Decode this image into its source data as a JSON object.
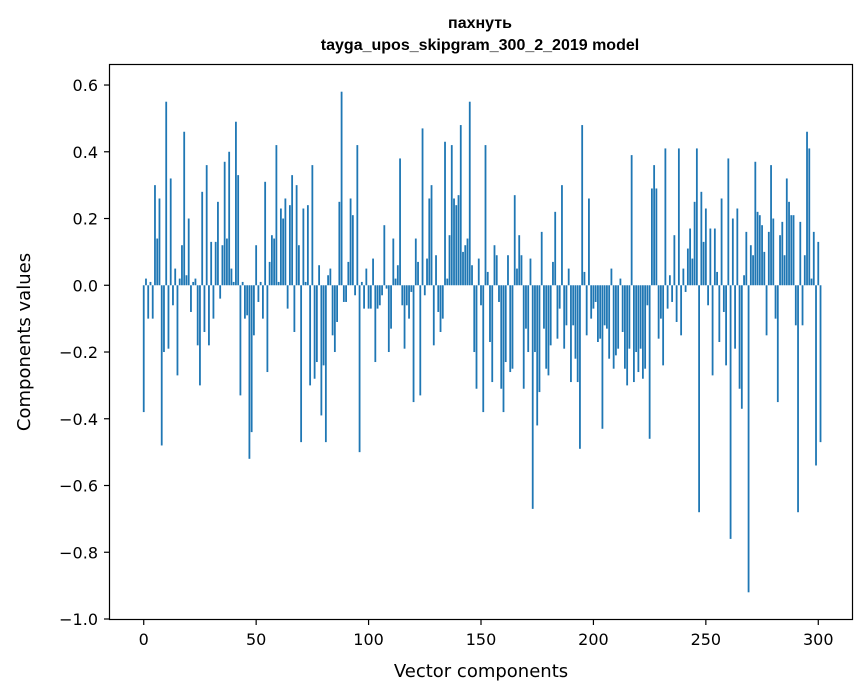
{
  "chart_data": {
    "type": "bar",
    "title": "пахнуть",
    "subtitle": "tayga_upos_skipgram_300_2_2019 model",
    "xlabel": "Vector components",
    "ylabel": "Components values",
    "xlim": [
      -15,
      315
    ],
    "ylim": [
      -1.0,
      0.66
    ],
    "x_ticks": [
      0,
      50,
      100,
      150,
      200,
      250,
      300
    ],
    "x_tick_labels": [
      "0",
      "50",
      "100",
      "150",
      "200",
      "250",
      "300"
    ],
    "y_ticks": [
      0.6,
      0.4,
      0.2,
      0.0,
      -0.2,
      -0.4,
      -0.6,
      -0.8,
      -1.0
    ],
    "y_tick_labels": [
      "0.6",
      "0.4",
      "0.2",
      "0.0",
      "−0.2",
      "−0.4",
      "−0.6",
      "−0.8",
      "−1.0"
    ],
    "grid": false,
    "bar_color": "#1f77b4",
    "values": [
      -0.38,
      0.02,
      -0.1,
      0.01,
      -0.1,
      0.3,
      0.14,
      0.26,
      -0.48,
      -0.2,
      0.55,
      -0.19,
      0.32,
      -0.06,
      0.05,
      -0.27,
      0.02,
      0.12,
      0.46,
      0.03,
      0.2,
      -0.08,
      0.01,
      0.02,
      -0.18,
      -0.3,
      0.28,
      -0.14,
      0.36,
      -0.18,
      0.13,
      -0.1,
      0.13,
      0.25,
      -0.04,
      0.12,
      0.37,
      0.14,
      0.4,
      0.05,
      0.01,
      0.49,
      0.33,
      -0.33,
      0.01,
      -0.1,
      -0.09,
      -0.52,
      -0.44,
      -0.15,
      0.12,
      -0.05,
      0.01,
      -0.1,
      0.31,
      -0.26,
      0.07,
      0.15,
      0.14,
      0.42,
      0.01,
      0.23,
      0.2,
      0.26,
      -0.07,
      0.24,
      0.33,
      -0.14,
      0.3,
      0.12,
      -0.47,
      0.23,
      0.01,
      0.24,
      -0.3,
      0.36,
      -0.28,
      -0.23,
      0.06,
      -0.39,
      -0.24,
      -0.47,
      0.03,
      0.05,
      -0.15,
      -0.2,
      -0.11,
      0.25,
      0.58,
      -0.05,
      -0.05,
      0.07,
      0.26,
      0.21,
      -0.03,
      0.42,
      -0.5,
      0.01,
      -0.07,
      0.05,
      -0.07,
      -0.07,
      0.08,
      -0.23,
      -0.07,
      -0.06,
      -0.03,
      0.18,
      -0.01,
      -0.2,
      -0.13,
      0.14,
      0.02,
      0.06,
      0.38,
      -0.06,
      -0.19,
      -0.06,
      -0.1,
      -0.02,
      -0.35,
      0.14,
      0.07,
      -0.33,
      0.47,
      -0.03,
      0.08,
      0.26,
      0.3,
      -0.18,
      0.09,
      -0.08,
      -0.14,
      -0.1,
      0.43,
      0.02,
      0.15,
      0.42,
      0.26,
      0.24,
      0.27,
      0.48,
      0.1,
      0.12,
      0.14,
      0.55,
      0.06,
      -0.2,
      -0.31,
      0.08,
      -0.06,
      -0.38,
      0.42,
      0.04,
      -0.17,
      -0.29,
      0.12,
      0.09,
      -0.05,
      -0.31,
      -0.38,
      -0.23,
      0.09,
      -0.26,
      -0.25,
      0.27,
      0.05,
      0.15,
      0.09,
      -0.31,
      -0.13,
      -0.2,
      0.08,
      -0.67,
      -0.2,
      -0.42,
      -0.32,
      0.16,
      -0.13,
      -0.25,
      -0.27,
      -0.18,
      0.07,
      0.22,
      -0.16,
      -0.07,
      0.3,
      -0.19,
      -0.12,
      0.05,
      -0.29,
      -0.12,
      -0.22,
      -0.29,
      -0.49,
      0.48,
      0.04,
      -0.15,
      0.26,
      -0.1,
      -0.07,
      -0.05,
      -0.17,
      -0.16,
      -0.43,
      -0.12,
      -0.13,
      -0.22,
      0.05,
      -0.25,
      -0.21,
      -0.19,
      0.02,
      -0.14,
      -0.25,
      -0.3,
      -0.19,
      0.39,
      -0.29,
      -0.2,
      -0.26,
      -0.19,
      -0.28,
      -0.25,
      -0.06,
      -0.46,
      0.29,
      0.36,
      0.29,
      -0.16,
      -0.1,
      -0.24,
      0.41,
      -0.07,
      0.03,
      -0.05,
      0.15,
      -0.11,
      0.41,
      -0.15,
      0.05,
      -0.02,
      0.11,
      0.17,
      0.08,
      0.25,
      0.41,
      -0.68,
      0.28,
      0.13,
      0.23,
      -0.06,
      0.17,
      -0.27,
      0.17,
      0.04,
      -0.17,
      0.26,
      -0.08,
      -0.24,
      0.38,
      -0.76,
      0.2,
      -0.19,
      0.23,
      -0.31,
      -0.37,
      0.03,
      0.16,
      -0.92,
      0.12,
      0.09,
      0.37,
      0.22,
      0.21,
      0.18,
      0.1,
      -0.15,
      0.16,
      0.36,
      0.2,
      -0.1,
      -0.35,
      0.15,
      0.19,
      0.09,
      0.32,
      0.25,
      0.21,
      0.21,
      -0.12,
      -0.68,
      0.19,
      -0.12,
      0.09,
      0.46,
      0.41,
      0.02,
      0.16,
      -0.54,
      0.13,
      -0.47
    ]
  }
}
